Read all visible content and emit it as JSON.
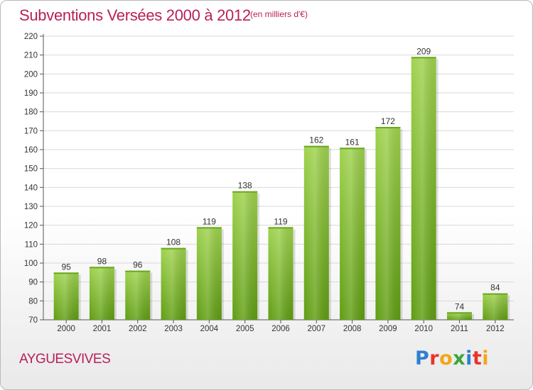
{
  "header": {
    "title": "Subventions Versées 2000 à 2012",
    "unit": "(en milliers d'€)"
  },
  "footer": {
    "commune": "AYGUESVIVES",
    "logo_letters": [
      "P",
      "r",
      "o",
      "x",
      "i",
      "t",
      "i"
    ],
    "logo_colors": [
      "#2f7fd1",
      "#e8342c",
      "#f2a51c",
      "#3aa63a",
      "#2f7fd1",
      "#e8342c",
      "#f2a51c"
    ]
  },
  "colors": {
    "bar_top": "#9fd24e",
    "bar_bottom": "#5f9d12",
    "accent": "#b8205a",
    "grid": "#d9d9d9"
  },
  "chart_data": {
    "type": "bar",
    "title": "Subventions Versées 2000 à 2012",
    "subtitle": "(en milliers d'€)",
    "xlabel": "",
    "ylabel": "",
    "categories": [
      "2000",
      "2001",
      "2002",
      "2003",
      "2004",
      "2005",
      "2006",
      "2007",
      "2008",
      "2009",
      "2010",
      "2011",
      "2012"
    ],
    "values": [
      95,
      98,
      96,
      108,
      119,
      138,
      119,
      162,
      161,
      172,
      209,
      74,
      84
    ],
    "ylim": [
      70,
      220
    ],
    "yticks": [
      70,
      80,
      90,
      100,
      110,
      120,
      130,
      140,
      150,
      160,
      170,
      180,
      190,
      200,
      210,
      220
    ],
    "grid": true,
    "legend": "none"
  }
}
